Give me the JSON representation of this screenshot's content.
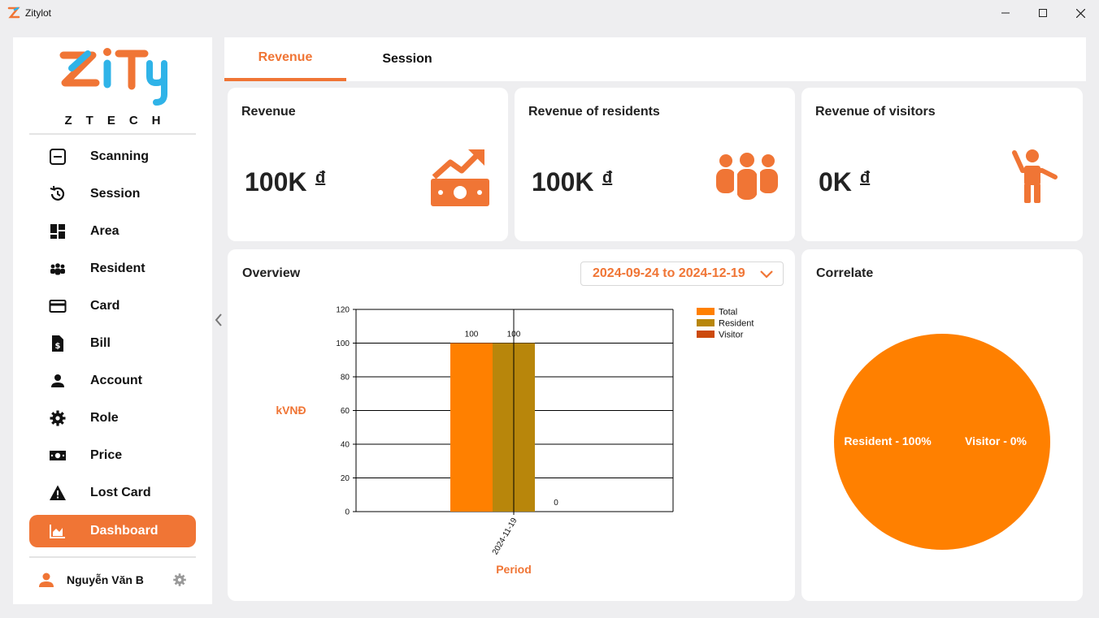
{
  "window": {
    "title": "Zitylot",
    "minimize": "─",
    "maximize": "☐",
    "close": "✕"
  },
  "logo": {
    "sub": "ZTECH"
  },
  "sidebar": {
    "items": [
      {
        "label": "Scanning",
        "icon": "scan-icon"
      },
      {
        "label": "Session",
        "icon": "history-icon"
      },
      {
        "label": "Area",
        "icon": "dashboard-grid-icon"
      },
      {
        "label": "Resident",
        "icon": "people-icon"
      },
      {
        "label": "Card",
        "icon": "credit-card-icon"
      },
      {
        "label": "Bill",
        "icon": "bill-icon"
      },
      {
        "label": "Account",
        "icon": "person-icon"
      },
      {
        "label": "Role",
        "icon": "gear-icon"
      },
      {
        "label": "Price",
        "icon": "money-icon"
      },
      {
        "label": "Lost Card",
        "icon": "warning-icon"
      },
      {
        "label": "Dashboard",
        "icon": "chart-icon",
        "active": true
      }
    ],
    "user": {
      "name": "Nguyễn Văn B"
    }
  },
  "tabs": {
    "revenue": "Revenue",
    "session": "Session"
  },
  "cards": {
    "revenue": {
      "title": "Revenue",
      "value": "100K",
      "currency": "đ"
    },
    "residents": {
      "title": "Revenue of residents",
      "value": "100K",
      "currency": "đ"
    },
    "visitors": {
      "title": "Revenue of visitors",
      "value": "0K",
      "currency": "đ"
    }
  },
  "overview": {
    "title": "Overview",
    "date_range": "2024-09-24 to 2024-12-19"
  },
  "correlate": {
    "title": "Correlate"
  },
  "colors": {
    "accent": "#f07535",
    "total": "#ff8000",
    "resident": "#b8860b",
    "visitor": "#cc4a0c"
  },
  "chart_data": [
    {
      "type": "bar",
      "categories": [
        "2024-11-19"
      ],
      "series": [
        {
          "name": "Total",
          "values": [
            100
          ]
        },
        {
          "name": "Resident",
          "values": [
            100
          ]
        },
        {
          "name": "Visitor",
          "values": [
            0
          ]
        }
      ],
      "xlabel": "Period",
      "ylabel": "kVNĐ",
      "ylim": [
        0,
        120
      ],
      "yticks": [
        0,
        20,
        40,
        60,
        80,
        100,
        120
      ],
      "grid": true,
      "legend": "top-right"
    },
    {
      "type": "pie",
      "labels": [
        "Resident - 100%",
        "Visitor - 0%"
      ],
      "values": [
        100,
        0
      ]
    }
  ]
}
